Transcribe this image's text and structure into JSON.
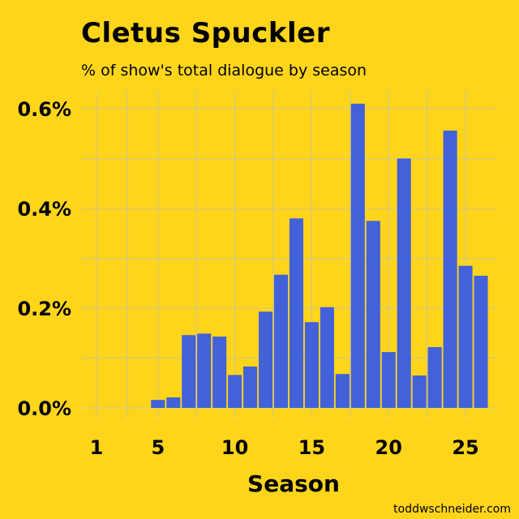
{
  "chart_data": {
    "type": "bar",
    "title": "Cletus Spuckler",
    "subtitle": "% of show's total dialogue by season",
    "xlabel": "Season",
    "ylabel": "",
    "credit": "toddwschneider.com",
    "x": [
      5,
      6,
      7,
      8,
      9,
      10,
      11,
      12,
      13,
      14,
      15,
      16,
      17,
      18,
      19,
      20,
      21,
      22,
      23,
      24,
      25,
      26
    ],
    "values": [
      0.016,
      0.021,
      0.146,
      0.149,
      0.143,
      0.066,
      0.083,
      0.193,
      0.267,
      0.38,
      0.172,
      0.202,
      0.068,
      0.61,
      0.375,
      0.112,
      0.5,
      0.065,
      0.122,
      0.556,
      0.285,
      0.265
    ],
    "xlim": [
      0,
      27
    ],
    "ylim": [
      0,
      0.6
    ],
    "x_ticks": [
      1,
      5,
      10,
      15,
      20,
      25
    ],
    "x_tick_labels": [
      "1",
      "5",
      "10",
      "15",
      "20",
      "25"
    ],
    "y_ticks": [
      0,
      0.2,
      0.4,
      0.6
    ],
    "y_tick_labels": [
      "0.0%",
      "0.2%",
      "0.4%",
      "0.6%"
    ],
    "grid": true,
    "colors": {
      "background": "#FED51B",
      "bar": "#4361D8",
      "text": "#111111",
      "grid": "#c9c59a"
    }
  }
}
